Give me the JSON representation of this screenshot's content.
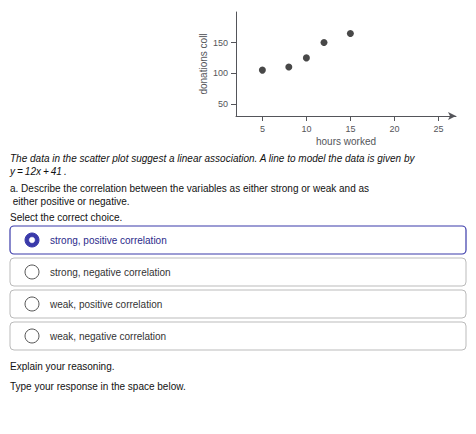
{
  "chart_data": {
    "type": "scatter",
    "x": [
      5,
      8,
      10,
      12,
      15
    ],
    "values": [
      105,
      110,
      125,
      150,
      165
    ],
    "color": "#1a1a1a",
    "xlim": [
      2,
      27
    ],
    "ylim": [
      30,
      200
    ],
    "xticks": [
      5,
      10,
      15,
      20,
      25
    ],
    "yticks": [
      50,
      100,
      150
    ],
    "xlabel": "hours worked",
    "ylabel": "donations coll",
    "grid": false,
    "annotations": [
      "The data in the scatter plot suggest a linear association. A line to model the data is given by y = 12x + 41 .",
      "a. Describe the correlation between the variables as either strong or weak and as either positive or negative.",
      "Select the correct choice.",
      "Explain your reasoning.",
      "Type your response in the space below."
    ],
    "choices": [
      "strong, positive correlation",
      "strong, negative correlation",
      "weak, positive correlation",
      "weak, negative correlation"
    ],
    "selected": "strong, positive correlation"
  }
}
